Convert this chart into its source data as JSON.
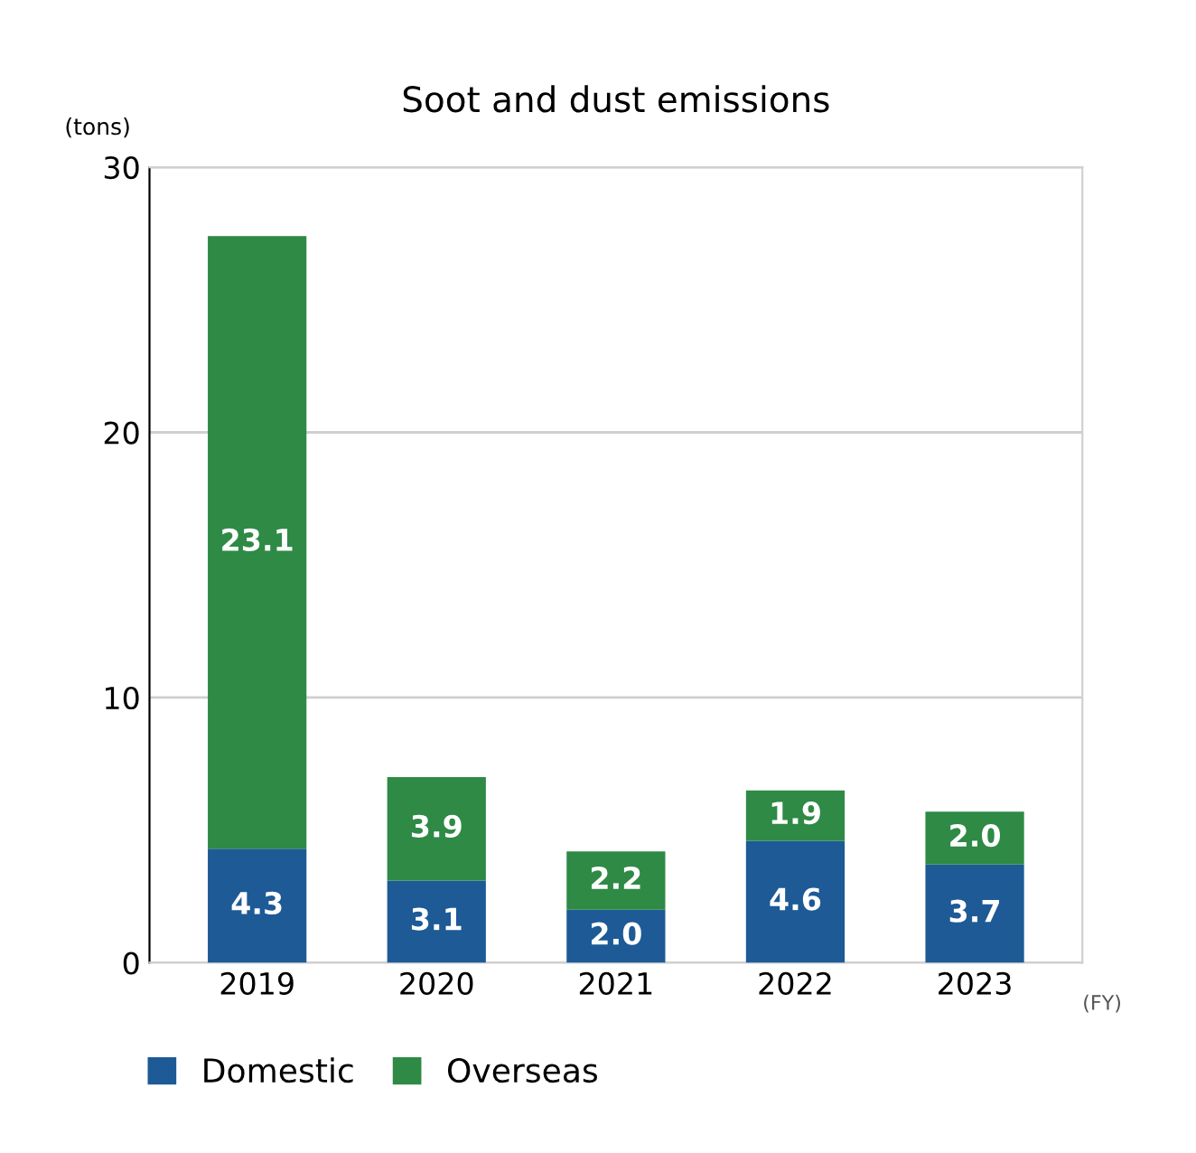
{
  "chart_data": {
    "type": "bar",
    "title": "Soot and dust emissions",
    "ylabel": "(tons)",
    "xlabel": "(FY)",
    "categories": [
      "2019",
      "2020",
      "2021",
      "2022",
      "2023"
    ],
    "series": [
      {
        "name": "Domestic",
        "color": "#1d5a96",
        "values": [
          4.3,
          3.1,
          2.0,
          4.6,
          3.7
        ],
        "value_labels": [
          "4.3",
          "3.1",
          "2.0",
          "4.6",
          "3.7"
        ]
      },
      {
        "name": "Overseas",
        "color": "#2e8a45",
        "values": [
          23.1,
          3.9,
          2.2,
          1.9,
          2.0
        ],
        "value_labels": [
          "23.1",
          "3.9",
          "2.2",
          "1.9",
          "2.0"
        ]
      }
    ],
    "stacked": true,
    "ylim": [
      0,
      30
    ],
    "yticks": [
      0,
      10,
      20,
      30
    ],
    "grid": "y",
    "legend": "bottom left"
  }
}
